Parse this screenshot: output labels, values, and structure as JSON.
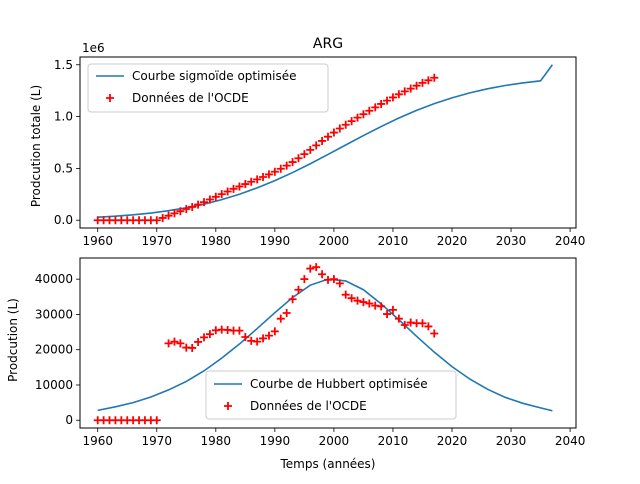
{
  "colors": {
    "curve": "#1f77b4",
    "data": "#ff0000"
  },
  "chart_data": [
    {
      "type": "line",
      "title": "ARG",
      "ylabel": "Prodcution totale (L)",
      "xlabel": "",
      "offset_label": "1e6",
      "xlim": [
        1957,
        2041
      ],
      "ylim": [
        -75000,
        1575000
      ],
      "xticks": [
        1960,
        1970,
        1980,
        1990,
        2000,
        2010,
        2020,
        2030,
        2040
      ],
      "yticks": [
        0,
        500000,
        1000000,
        1500000
      ],
      "ytick_labels": [
        "0.0",
        "0.5",
        "1.0",
        "1.5"
      ],
      "legend": {
        "placement": "top-left",
        "entries": [
          "Courbe sigmoïde optimisée",
          "Données de l'OCDE"
        ]
      },
      "series": [
        {
          "name": "Courbe sigmoïde optimisée",
          "kind": "line",
          "x": [
            1960,
            1963,
            1966,
            1969,
            1972,
            1975,
            1978,
            1981,
            1984,
            1987,
            1990,
            1993,
            1996,
            1999,
            2002,
            2005,
            2008,
            2011,
            2014,
            2017,
            2020,
            2023,
            2026,
            2029,
            2032,
            2035,
            2037
          ],
          "y": [
            29000,
            39000,
            52000,
            69000,
            92000,
            120000,
            155000,
            199000,
            251000,
            312000,
            382000,
            460000,
            545000,
            635000,
            726000,
            817000,
            904000,
            986000,
            1060000,
            1125000,
            1181000,
            1229000,
            1268000,
            1300000,
            1325000,
            1345000,
            1500000
          ]
        },
        {
          "name": "Données de l'OCDE",
          "kind": "scatter",
          "x": [
            1960,
            1961,
            1962,
            1963,
            1964,
            1965,
            1966,
            1967,
            1968,
            1969,
            1970,
            1971,
            1972,
            1973,
            1974,
            1975,
            1976,
            1977,
            1978,
            1979,
            1980,
            1981,
            1982,
            1983,
            1984,
            1985,
            1986,
            1987,
            1988,
            1989,
            1990,
            1991,
            1992,
            1993,
            1994,
            1995,
            1996,
            1997,
            1998,
            1999,
            2000,
            2001,
            2002,
            2003,
            2004,
            2005,
            2006,
            2007,
            2008,
            2009,
            2010,
            2011,
            2012,
            2013,
            2014,
            2015,
            2016,
            2017
          ],
          "y": [
            0,
            0,
            0,
            0,
            0,
            0,
            0,
            0,
            0,
            0,
            0,
            22000,
            44000,
            66000,
            87000,
            108000,
            128000,
            151000,
            175000,
            200000,
            226000,
            252000,
            277000,
            303000,
            326000,
            349000,
            371000,
            394000,
            417000,
            442000,
            468000,
            497000,
            527000,
            561000,
            598000,
            638000,
            679000,
            722000,
            765000,
            806000,
            846000,
            885000,
            921000,
            956000,
            990000,
            1023000,
            1056000,
            1089000,
            1122000,
            1154000,
            1185000,
            1215000,
            1243000,
            1270000,
            1298000,
            1325000,
            1350000,
            1375000
          ]
        }
      ]
    },
    {
      "type": "line",
      "title": "",
      "ylabel": "Prodcution (L)",
      "xlabel": "Temps (années)",
      "xlim": [
        1957,
        2041
      ],
      "ylim": [
        -2200,
        46000
      ],
      "xticks": [
        1960,
        1970,
        1980,
        1990,
        2000,
        2010,
        2020,
        2030,
        2040
      ],
      "yticks": [
        0,
        10000,
        20000,
        30000,
        40000
      ],
      "ytick_labels": [
        "0",
        "10000",
        "20000",
        "30000",
        "40000"
      ],
      "legend": {
        "placement": "lower-center",
        "entries": [
          "Courbe de Hubbert optimisée",
          "Données de l'OCDE"
        ]
      },
      "series": [
        {
          "name": "Courbe de Hubbert optimisée",
          "kind": "line",
          "x": [
            1960,
            1963,
            1966,
            1969,
            1972,
            1975,
            1978,
            1981,
            1984,
            1987,
            1990,
            1993,
            1996,
            1999,
            2002,
            2005,
            2008,
            2011,
            2014,
            2017,
            2020,
            2023,
            2026,
            2029,
            2032,
            2035,
            2037
          ],
          "y": [
            2800,
            3800,
            5000,
            6600,
            8600,
            11000,
            14000,
            17600,
            21600,
            26000,
            30500,
            34800,
            38300,
            40000,
            39500,
            37000,
            33000,
            28500,
            23800,
            19300,
            15200,
            11700,
            8800,
            6500,
            4800,
            3500,
            2700
          ]
        },
        {
          "name": "Données de l'OCDE",
          "kind": "scatter",
          "x": [
            1960,
            1961,
            1962,
            1963,
            1964,
            1965,
            1966,
            1967,
            1968,
            1969,
            1970,
            1972,
            1973,
            1974,
            1975,
            1976,
            1977,
            1978,
            1979,
            1980,
            1981,
            1982,
            1983,
            1984,
            1985,
            1986,
            1987,
            1988,
            1989,
            1990,
            1991,
            1992,
            1993,
            1994,
            1995,
            1996,
            1997,
            1998,
            1999,
            2000,
            2001,
            2002,
            2003,
            2004,
            2005,
            2006,
            2007,
            2008,
            2009,
            2010,
            2011,
            2012,
            2013,
            2014,
            2015,
            2016,
            2017
          ],
          "y": [
            0,
            0,
            0,
            0,
            0,
            0,
            0,
            0,
            0,
            0,
            0,
            21800,
            22300,
            21800,
            20600,
            20500,
            22200,
            23500,
            24400,
            25500,
            25700,
            25600,
            25400,
            25400,
            23600,
            22500,
            22300,
            23200,
            24000,
            25200,
            28800,
            30400,
            34300,
            37000,
            40000,
            43000,
            43400,
            41400,
            39800,
            40000,
            38800,
            35600,
            34600,
            33900,
            33500,
            33100,
            32500,
            32300,
            30100,
            31300,
            28800,
            27000,
            27700,
            27500,
            27500,
            26600,
            24600
          ]
        }
      ]
    }
  ]
}
